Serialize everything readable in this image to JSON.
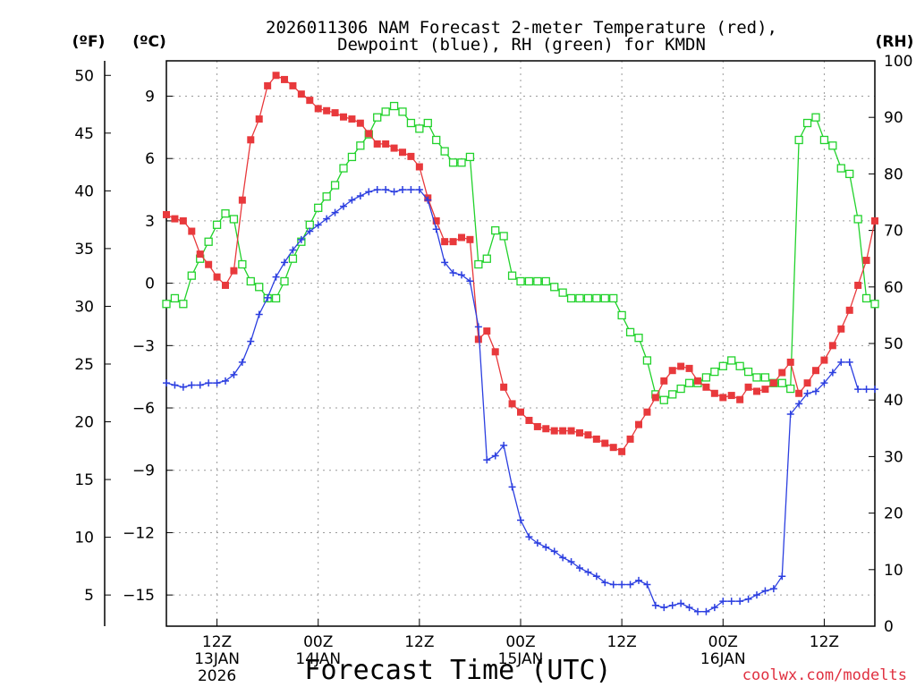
{
  "chart_data": {
    "type": "line",
    "title_line1": "2026011306 NAM Forecast 2-meter Temperature (red),",
    "title_line2": "Dewpoint (blue), RH (green) for KMDN",
    "xlabel": "Forecast Time (UTC)",
    "credit": "coolwx.com/modelts",
    "y_units": {
      "fahrenheit": "(ºF)",
      "celsius": "(ºC)",
      "rh": "(RH)"
    },
    "celsius_ticks": [
      9,
      6,
      3,
      0,
      -3,
      -6,
      -9,
      -12,
      -15
    ],
    "celsius_tick_labels": [
      "9",
      "6",
      "3",
      "0",
      "−3",
      "−6",
      "−9",
      "−12",
      "−15"
    ],
    "fahrenheit_ticks": [
      50,
      45,
      40,
      35,
      30,
      25,
      20,
      15,
      10,
      5
    ],
    "rh_ticks": [
      100,
      90,
      80,
      70,
      60,
      50,
      40,
      30,
      20,
      10,
      0
    ],
    "ylim_celsius": [
      -16.5,
      10.7
    ],
    "ylim_fahrenheit": [
      2.3,
      51.26
    ],
    "ylim_rh": [
      0,
      100
    ],
    "xlim_hours": [
      6,
      90
    ],
    "x_ticks": [
      {
        "hour": 12,
        "lines": [
          "12Z",
          "13JAN",
          "2026"
        ]
      },
      {
        "hour": 24,
        "lines": [
          "00Z",
          "14JAN"
        ]
      },
      {
        "hour": 36,
        "lines": [
          "12Z"
        ]
      },
      {
        "hour": 48,
        "lines": [
          "00Z",
          "15JAN"
        ]
      },
      {
        "hour": 60,
        "lines": [
          "12Z"
        ]
      },
      {
        "hour": 72,
        "lines": [
          "00Z",
          "16JAN"
        ]
      },
      {
        "hour": 84,
        "lines": [
          "12Z"
        ]
      }
    ],
    "series": [
      {
        "name": "Temperature",
        "unit": "C",
        "color": "#e8393c",
        "marker": "filled-square",
        "hours": [
          6,
          7,
          8,
          9,
          10,
          11,
          12,
          13,
          14,
          15,
          16,
          17,
          18,
          19,
          20,
          21,
          22,
          23,
          24,
          25,
          26,
          27,
          28,
          29,
          30,
          31,
          32,
          33,
          34,
          35,
          36,
          37,
          38,
          39,
          40,
          41,
          42,
          43,
          44,
          45,
          46,
          47,
          48,
          49,
          50,
          51,
          52,
          53,
          54,
          55,
          56,
          57,
          58,
          59,
          60,
          61,
          62,
          63,
          64,
          65,
          66,
          67,
          68,
          69,
          70,
          71,
          72,
          73,
          74,
          75,
          76,
          77,
          78,
          79,
          80,
          81,
          82,
          83,
          84,
          85,
          86,
          87,
          88,
          89,
          90
        ],
        "values": [
          3.3,
          3.1,
          3.0,
          2.5,
          1.4,
          0.9,
          0.3,
          -0.1,
          0.6,
          4.0,
          6.9,
          7.9,
          9.5,
          10.0,
          9.8,
          9.5,
          9.1,
          8.8,
          8.4,
          8.3,
          8.2,
          8.0,
          7.9,
          7.7,
          7.2,
          6.7,
          6.7,
          6.5,
          6.3,
          6.1,
          5.6,
          4.1,
          3.0,
          2.0,
          2.0,
          2.2,
          2.1,
          -2.7,
          -2.3,
          -3.3,
          -5.0,
          -5.8,
          -6.2,
          -6.6,
          -6.9,
          -7.0,
          -7.1,
          -7.1,
          -7.1,
          -7.2,
          -7.3,
          -7.5,
          -7.7,
          -7.9,
          -8.1,
          -7.5,
          -6.8,
          -6.2,
          -5.5,
          -4.7,
          -4.2,
          -4.0,
          -4.1,
          -4.7,
          -5.0,
          -5.3,
          -5.5,
          -5.4,
          -5.6,
          -5.0,
          -5.2,
          -5.1,
          -4.8,
          -4.3,
          -3.8,
          -5.3,
          -4.8,
          -4.2,
          -3.7,
          -3.0,
          -2.2,
          -1.3,
          -0.1,
          1.1,
          3.0
        ]
      },
      {
        "name": "Dewpoint",
        "unit": "C",
        "color": "#2c3fe0",
        "marker": "plus",
        "hours": [
          6,
          7,
          8,
          9,
          10,
          11,
          12,
          13,
          14,
          15,
          16,
          17,
          18,
          19,
          20,
          21,
          22,
          23,
          24,
          25,
          26,
          27,
          28,
          29,
          30,
          31,
          32,
          33,
          34,
          35,
          36,
          37,
          38,
          39,
          40,
          41,
          42,
          43,
          44,
          45,
          46,
          47,
          48,
          49,
          50,
          51,
          52,
          53,
          54,
          55,
          56,
          57,
          58,
          59,
          60,
          61,
          62,
          63,
          64,
          65,
          66,
          67,
          68,
          69,
          70,
          71,
          72,
          73,
          74,
          75,
          76,
          77,
          78,
          79,
          80,
          81,
          82,
          83,
          84,
          85,
          86,
          87,
          88,
          89,
          90
        ],
        "values": [
          -4.8,
          -4.9,
          -5.0,
          -4.9,
          -4.9,
          -4.8,
          -4.8,
          -4.7,
          -4.4,
          -3.8,
          -2.8,
          -1.5,
          -0.7,
          0.3,
          1.0,
          1.6,
          2.1,
          2.5,
          2.8,
          3.1,
          3.4,
          3.7,
          4.0,
          4.2,
          4.4,
          4.5,
          4.5,
          4.4,
          4.5,
          4.5,
          4.5,
          4.0,
          2.6,
          1.0,
          0.5,
          0.4,
          0.1,
          -2.1,
          -8.5,
          -8.3,
          -7.8,
          -9.8,
          -11.4,
          -12.2,
          -12.5,
          -12.7,
          -12.9,
          -13.2,
          -13.4,
          -13.7,
          -13.9,
          -14.1,
          -14.4,
          -14.5,
          -14.5,
          -14.5,
          -14.3,
          -14.5,
          -15.5,
          -15.6,
          -15.5,
          -15.4,
          -15.6,
          -15.8,
          -15.8,
          -15.6,
          -15.3,
          -15.3,
          -15.3,
          -15.2,
          -15.0,
          -14.8,
          -14.7,
          -14.1,
          -6.3,
          -5.8,
          -5.3,
          -5.2,
          -4.8,
          -4.3,
          -3.8,
          -3.8,
          -5.1,
          -5.1,
          -5.1
        ]
      },
      {
        "name": "RH",
        "unit": "%",
        "color": "#22d22c",
        "marker": "open-square",
        "hours": [
          6,
          7,
          8,
          9,
          10,
          11,
          12,
          13,
          14,
          15,
          16,
          17,
          18,
          19,
          20,
          21,
          22,
          23,
          24,
          25,
          26,
          27,
          28,
          29,
          30,
          31,
          32,
          33,
          34,
          35,
          36,
          37,
          38,
          39,
          40,
          41,
          42,
          43,
          44,
          45,
          46,
          47,
          48,
          49,
          50,
          51,
          52,
          53,
          54,
          55,
          56,
          57,
          58,
          59,
          60,
          61,
          62,
          63,
          64,
          65,
          66,
          67,
          68,
          69,
          70,
          71,
          72,
          73,
          74,
          75,
          76,
          77,
          78,
          79,
          80,
          81,
          82,
          83,
          84,
          85,
          86,
          87,
          88,
          89,
          90
        ],
        "values": [
          57,
          58,
          57,
          62,
          65,
          68,
          71,
          73,
          72,
          64,
          61,
          60,
          58,
          58,
          61,
          65,
          68,
          71,
          74,
          76,
          78,
          81,
          83,
          85,
          87,
          90,
          91,
          92,
          91,
          89,
          88,
          89,
          86,
          84,
          82,
          82,
          83,
          64,
          65,
          70,
          69,
          62,
          61,
          61,
          61,
          61,
          60,
          59,
          58,
          58,
          58,
          58,
          58,
          58,
          55,
          52,
          51,
          47,
          41,
          40,
          41,
          42,
          43,
          43,
          44,
          45,
          46,
          47,
          46,
          45,
          44,
          44,
          43,
          43,
          42,
          86,
          89,
          90,
          86,
          85,
          81,
          80,
          72,
          58,
          57
        ]
      }
    ]
  }
}
